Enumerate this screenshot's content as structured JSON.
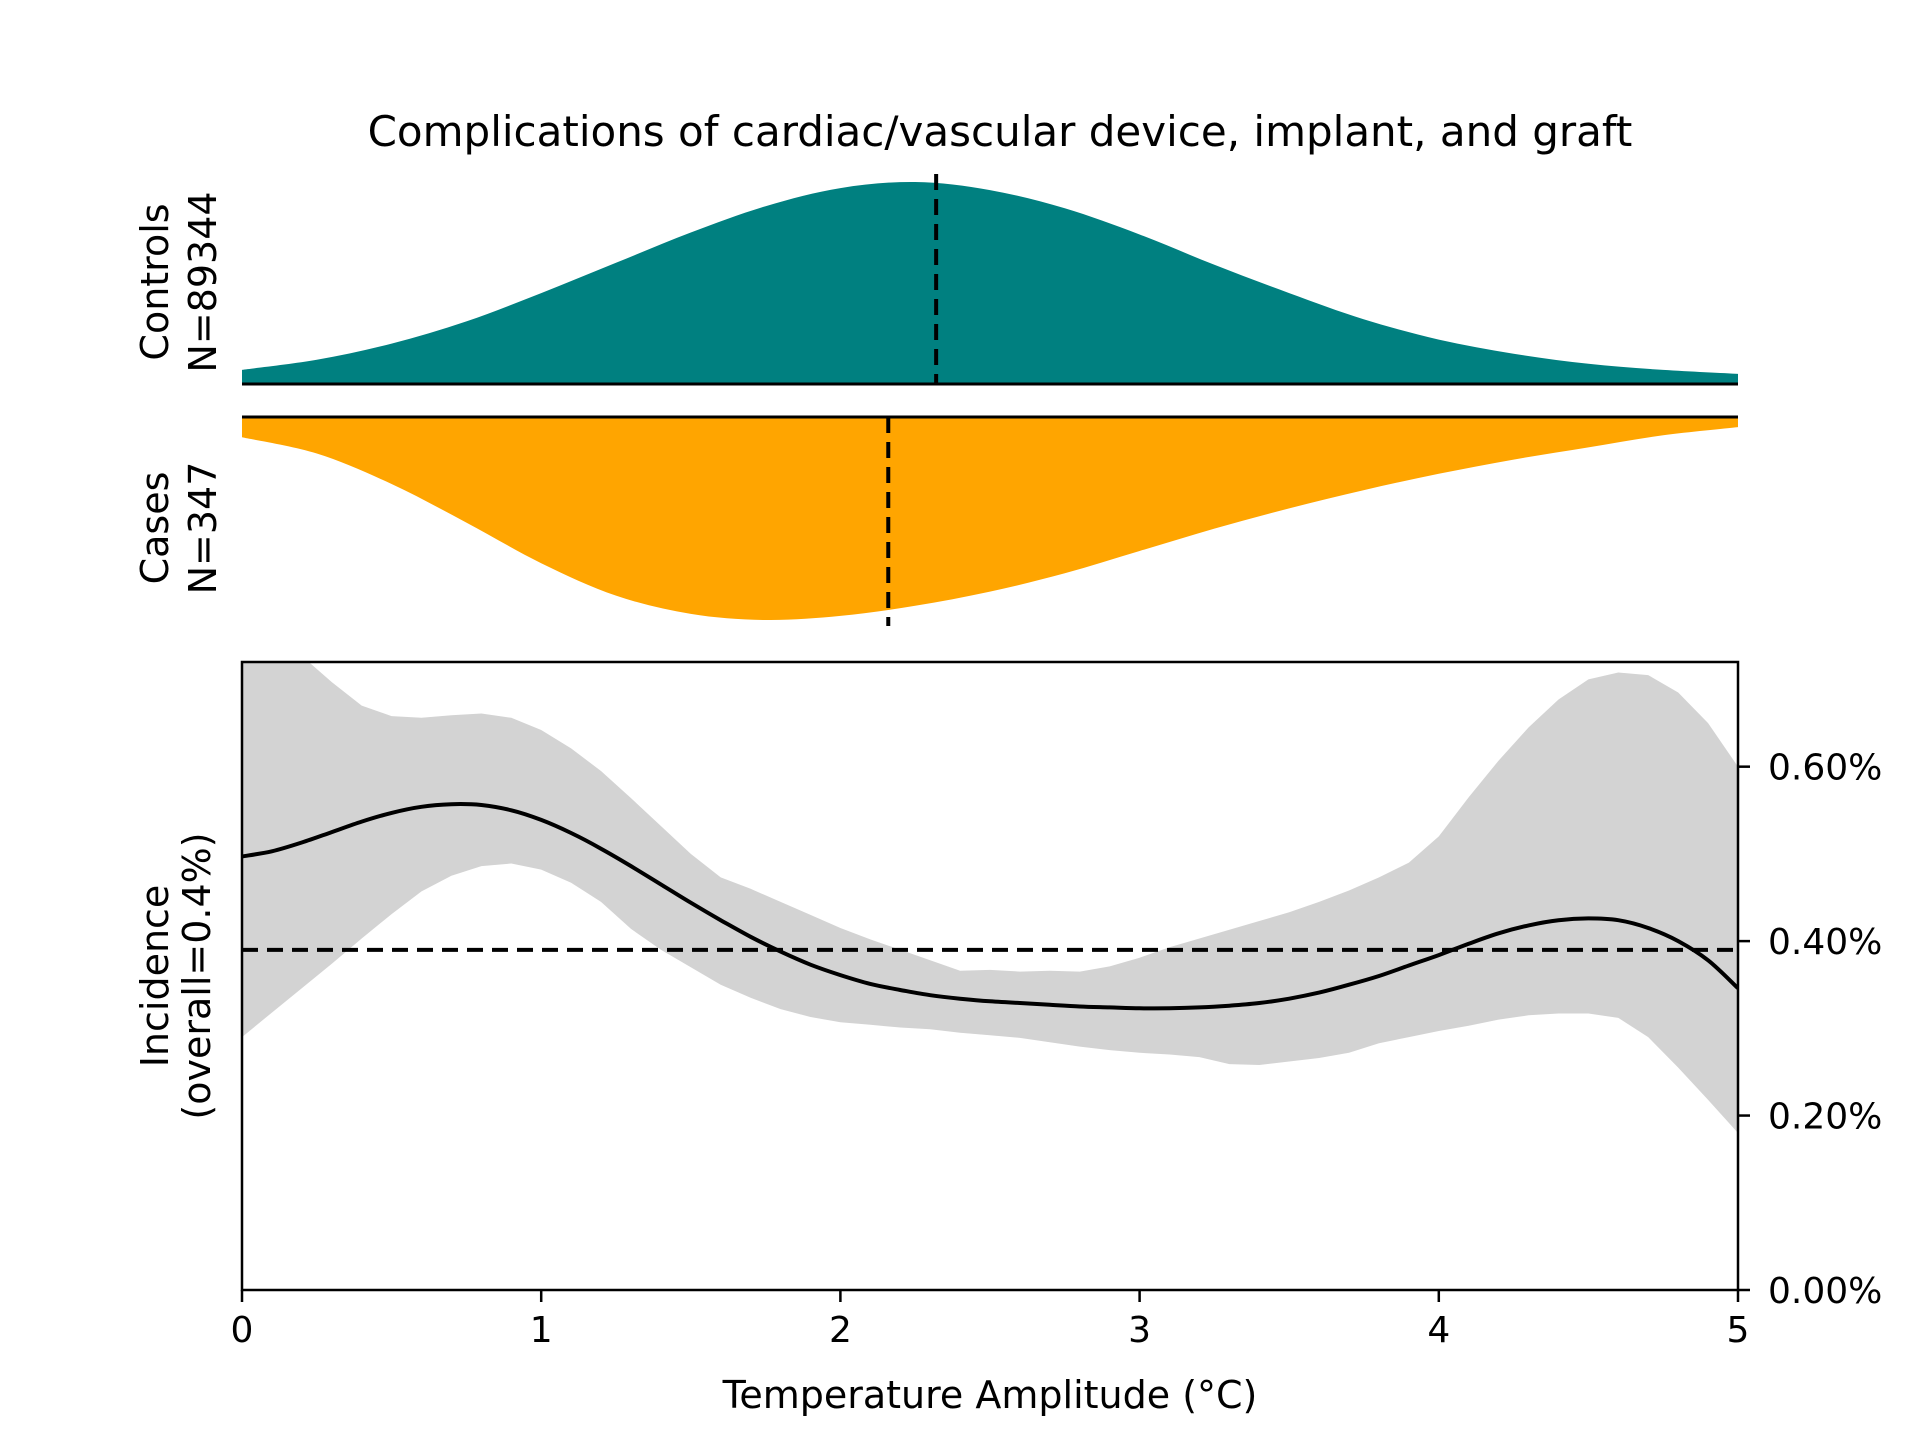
{
  "chart_data": {
    "type": "area",
    "title": "Complications of cardiac/vascular device, implant, and graft",
    "xlabel": "Temperature Amplitude (°C)",
    "xlim": [
      0,
      5
    ],
    "x_ticks": [
      0,
      1,
      2,
      3,
      4,
      5
    ],
    "x_tick_labels": [
      "0",
      "1",
      "2",
      "3",
      "4",
      "5"
    ],
    "controls": {
      "label_line1": "Controls",
      "label_line2": "N=89344",
      "color": "#008080",
      "median": 2.32,
      "x": [
        0,
        0.25,
        0.5,
        0.75,
        1.0,
        1.25,
        1.5,
        1.75,
        2.0,
        2.25,
        2.5,
        2.75,
        3.0,
        3.25,
        3.5,
        3.75,
        4.0,
        4.25,
        4.5,
        4.75,
        5.0
      ],
      "density": [
        0.07,
        0.12,
        0.2,
        0.31,
        0.45,
        0.6,
        0.75,
        0.88,
        0.97,
        1.0,
        0.96,
        0.87,
        0.74,
        0.59,
        0.45,
        0.32,
        0.22,
        0.15,
        0.1,
        0.07,
        0.05
      ]
    },
    "cases": {
      "label_line1": "Cases",
      "label_line2": "N=347",
      "color": "#ffa500",
      "median": 2.16,
      "x": [
        0,
        0.25,
        0.5,
        0.75,
        1.0,
        1.25,
        1.5,
        1.75,
        2.0,
        2.25,
        2.5,
        2.75,
        3.0,
        3.25,
        3.5,
        3.75,
        4.0,
        4.25,
        4.5,
        4.75,
        5.0
      ],
      "density": [
        0.1,
        0.18,
        0.33,
        0.52,
        0.72,
        0.88,
        0.97,
        1.0,
        0.98,
        0.93,
        0.86,
        0.77,
        0.66,
        0.55,
        0.45,
        0.36,
        0.28,
        0.21,
        0.15,
        0.09,
        0.05
      ]
    },
    "incidence": {
      "ylabel_line1": "Incidence",
      "ylabel_line2": "(overall=0.4%)",
      "ylim": [
        0,
        0.72
      ],
      "y_ticks": [
        0,
        0.2,
        0.4,
        0.6
      ],
      "y_tick_labels": [
        "0.00%",
        "0.20%",
        "0.40%",
        "0.60%"
      ],
      "overall": 0.39,
      "band_color": "#d3d3d3",
      "x": [
        0,
        0.1,
        0.2,
        0.3,
        0.4,
        0.5,
        0.6,
        0.7,
        0.8,
        0.9,
        1.0,
        1.1,
        1.2,
        1.3,
        1.4,
        1.5,
        1.6,
        1.7,
        1.8,
        1.9,
        2.0,
        2.1,
        2.2,
        2.3,
        2.4,
        2.5,
        2.6,
        2.7,
        2.8,
        2.9,
        3.0,
        3.1,
        3.2,
        3.3,
        3.4,
        3.5,
        3.6,
        3.7,
        3.8,
        3.9,
        4.0,
        4.1,
        4.2,
        4.3,
        4.4,
        4.5,
        4.6,
        4.7,
        4.8,
        4.9,
        5.0
      ],
      "mean": [
        0.497,
        0.503,
        0.513,
        0.525,
        0.537,
        0.547,
        0.554,
        0.557,
        0.556,
        0.55,
        0.539,
        0.524,
        0.506,
        0.486,
        0.465,
        0.444,
        0.424,
        0.405,
        0.388,
        0.373,
        0.361,
        0.351,
        0.344,
        0.338,
        0.334,
        0.331,
        0.329,
        0.327,
        0.325,
        0.324,
        0.323,
        0.323,
        0.324,
        0.326,
        0.329,
        0.334,
        0.341,
        0.35,
        0.36,
        0.372,
        0.384,
        0.397,
        0.409,
        0.418,
        0.424,
        0.426,
        0.424,
        0.415,
        0.4,
        0.378,
        0.346
      ],
      "upper": [
        0.76,
        0.755,
        0.727,
        0.697,
        0.67,
        0.658,
        0.656,
        0.659,
        0.661,
        0.656,
        0.642,
        0.621,
        0.595,
        0.564,
        0.532,
        0.5,
        0.473,
        0.46,
        0.445,
        0.43,
        0.415,
        0.402,
        0.39,
        0.378,
        0.366,
        0.367,
        0.365,
        0.366,
        0.365,
        0.371,
        0.381,
        0.393,
        0.403,
        0.413,
        0.423,
        0.433,
        0.445,
        0.458,
        0.473,
        0.49,
        0.52,
        0.565,
        0.607,
        0.645,
        0.677,
        0.7,
        0.708,
        0.705,
        0.685,
        0.65,
        0.6
      ],
      "lower": [
        0.29,
        0.318,
        0.346,
        0.374,
        0.403,
        0.431,
        0.457,
        0.475,
        0.486,
        0.489,
        0.482,
        0.467,
        0.445,
        0.414,
        0.39,
        0.37,
        0.35,
        0.335,
        0.322,
        0.313,
        0.307,
        0.304,
        0.301,
        0.299,
        0.295,
        0.292,
        0.289,
        0.284,
        0.279,
        0.275,
        0.272,
        0.27,
        0.267,
        0.259,
        0.258,
        0.262,
        0.266,
        0.272,
        0.283,
        0.29,
        0.297,
        0.303,
        0.31,
        0.315,
        0.317,
        0.317,
        0.312,
        0.29,
        0.255,
        0.218,
        0.18
      ]
    }
  }
}
